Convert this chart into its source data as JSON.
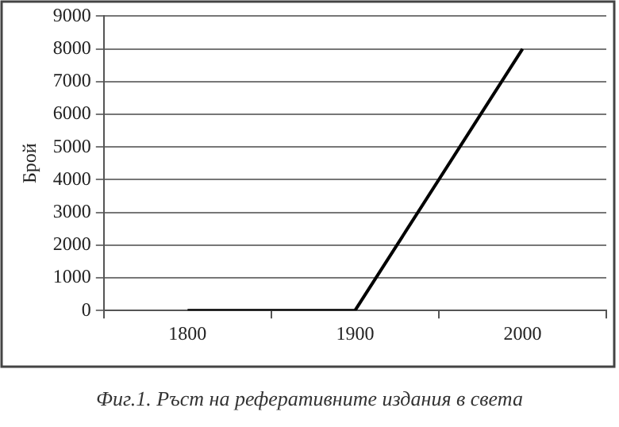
{
  "chart_data": {
    "type": "line",
    "ylabel": "Брой",
    "categories": [
      "1800",
      "1900",
      "2000"
    ],
    "series": [
      {
        "color": "#000000",
        "values": [
          0,
          0,
          8000
        ]
      }
    ],
    "ylim": [
      0,
      9000
    ],
    "yticks": [
      0,
      1000,
      2000,
      3000,
      4000,
      5000,
      6000,
      7000,
      8000,
      9000
    ],
    "grid": "y",
    "legend": false,
    "marker": "none",
    "line_style": "solid",
    "annotations": [
      "Фиг.1. Ръст на реферативните издания в света"
    ]
  }
}
